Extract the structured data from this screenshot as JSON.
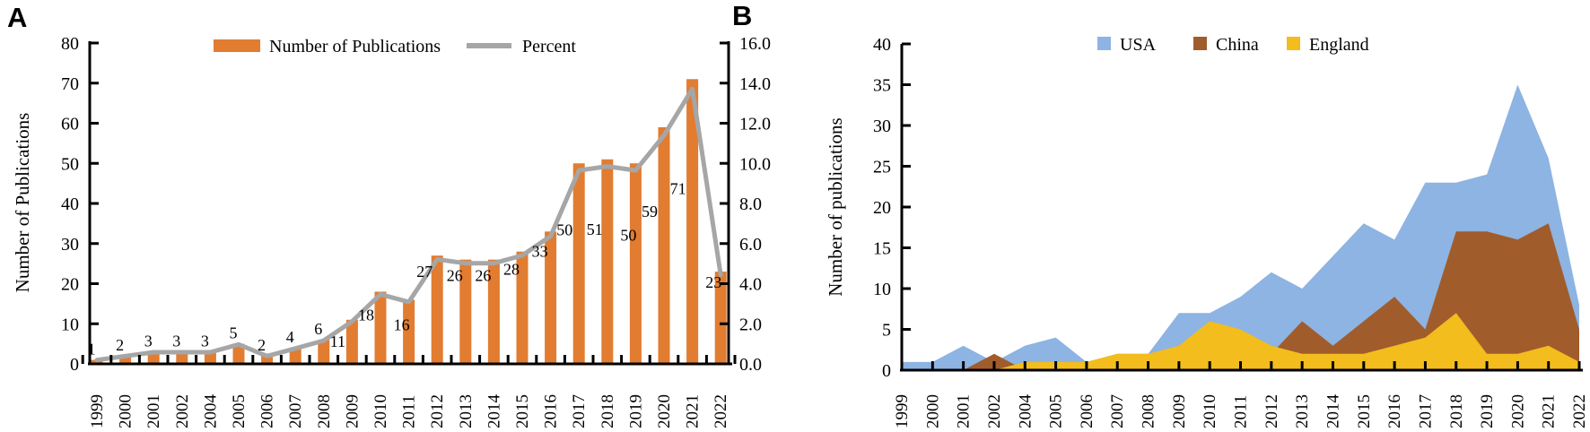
{
  "figure": {
    "panel_a_label": "A",
    "panel_b_label": "B"
  },
  "chart_data": [
    {
      "panel": "A",
      "type": "bar",
      "title": "",
      "xlabel": "",
      "ylabel": "Number of Publications",
      "categories": [
        "1999",
        "2000",
        "2001",
        "2002",
        "2004",
        "2005",
        "2006",
        "2007",
        "2008",
        "2009",
        "2010",
        "2011",
        "2012",
        "2013",
        "2014",
        "2015",
        "2016",
        "2017",
        "2018",
        "2019",
        "2020",
        "2021",
        "2022"
      ],
      "series": [
        {
          "name": "Number of Publications",
          "type": "bar",
          "axis": "left",
          "color": "#E17C31",
          "values": [
            1,
            2,
            3,
            3,
            3,
            5,
            2,
            4,
            6,
            11,
            18,
            16,
            27,
            26,
            26,
            28,
            33,
            50,
            51,
            50,
            59,
            71,
            23
          ]
        },
        {
          "name": "Percent",
          "type": "line",
          "axis": "right",
          "color": "#A6A6A6",
          "values": [
            0.19,
            0.39,
            0.58,
            0.58,
            0.58,
            0.97,
            0.39,
            0.77,
            1.16,
            2.12,
            3.47,
            3.09,
            5.21,
            5.02,
            5.02,
            5.41,
            6.37,
            9.65,
            9.85,
            9.65,
            11.39,
            13.71,
            4.44
          ]
        }
      ],
      "ylim": [
        0,
        80
      ],
      "ytick_step": 10,
      "y2lim": [
        0,
        16
      ],
      "y2tick_step": 2,
      "y2tick_decimals": 1,
      "bar_value_labels": true,
      "legend_position": "top",
      "grid": false
    },
    {
      "panel": "B",
      "type": "area",
      "title": "",
      "xlabel": "",
      "ylabel": "Number of publications",
      "categories": [
        "1999",
        "2000",
        "2001",
        "2002",
        "2004",
        "2005",
        "2006",
        "2007",
        "2008",
        "2009",
        "2010",
        "2011",
        "2012",
        "2013",
        "2014",
        "2015",
        "2016",
        "2017",
        "2018",
        "2019",
        "2020",
        "2021",
        "2022"
      ],
      "series": [
        {
          "name": "USA",
          "color": "#8DB4E2",
          "values": [
            1,
            1,
            3,
            1,
            3,
            4,
            1,
            2,
            2,
            7,
            7,
            9,
            12,
            10,
            14,
            18,
            16,
            23,
            23,
            24,
            35,
            26,
            8
          ]
        },
        {
          "name": "China",
          "color": "#A15C2C",
          "values": [
            0,
            0,
            0,
            2,
            0,
            0,
            0,
            0,
            0,
            0,
            0,
            0,
            2,
            6,
            3,
            6,
            9,
            5,
            17,
            17,
            16,
            18,
            5
          ]
        },
        {
          "name": "England",
          "color": "#F2BD1D",
          "values": [
            0,
            0,
            0,
            0,
            1,
            1,
            1,
            2,
            2,
            3,
            6,
            5,
            3,
            2,
            2,
            2,
            3,
            4,
            7,
            2,
            2,
            3,
            1
          ]
        }
      ],
      "ylim": [
        0,
        40
      ],
      "ytick_step": 5,
      "legend_position": "top",
      "grid": false,
      "overlap": "painter-order: USA back, China middle, England front"
    }
  ]
}
